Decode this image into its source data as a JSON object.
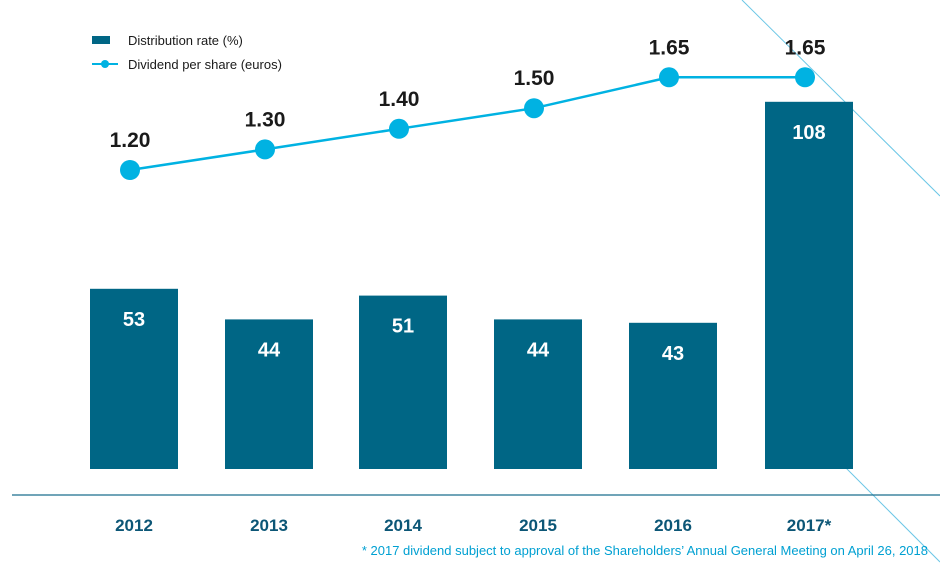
{
  "chart_data": {
    "type": "bar+line",
    "categories": [
      "2012",
      "2013",
      "2014",
      "2015",
      "2016",
      "2017*"
    ],
    "series": [
      {
        "name": "Distribution rate (%)",
        "type": "bar",
        "values": [
          53,
          44,
          51,
          44,
          43,
          108
        ],
        "labels": [
          "53",
          "44",
          "51",
          "44",
          "43",
          "108"
        ]
      },
      {
        "name": "Dividend per share (euros)",
        "type": "line",
        "values": [
          1.2,
          1.3,
          1.4,
          1.5,
          1.65,
          1.65
        ],
        "labels": [
          "1.20",
          "1.30",
          "1.40",
          "1.50",
          "1.65",
          "1.65"
        ]
      }
    ],
    "legend_position": "top-left",
    "grid": false,
    "colors": {
      "bar": "#006685",
      "line": "#00b2e2",
      "axis": "#1a6e8e",
      "footnote": "#00a0d2",
      "decor": "#6cc7e6"
    },
    "footnote": "* 2017 dividend subject to approval of the Shareholders’ Annual General Meeting on April 26, 2018"
  }
}
